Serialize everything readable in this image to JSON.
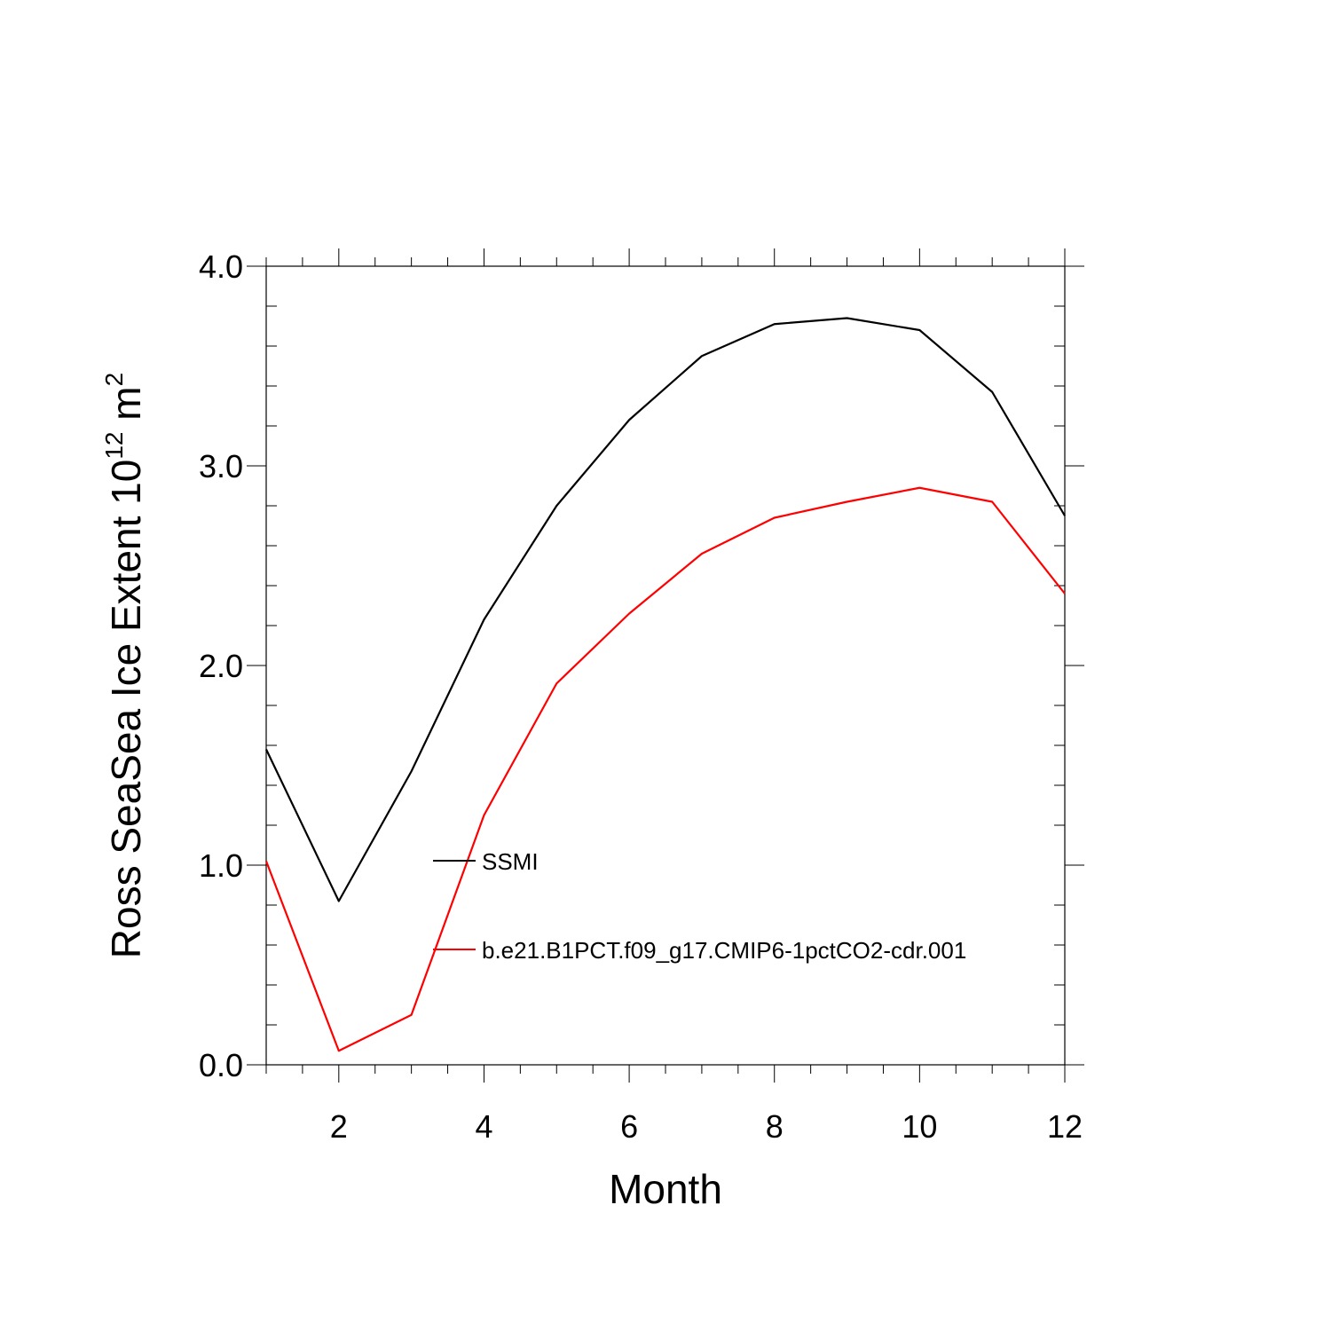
{
  "chart_data": {
    "type": "line",
    "x": [
      1,
      2,
      3,
      4,
      5,
      6,
      7,
      8,
      9,
      10,
      11,
      12
    ],
    "series": [
      {
        "name": "SSMI",
        "color": "#000000",
        "values": [
          1.58,
          0.82,
          1.47,
          2.23,
          2.8,
          3.23,
          3.55,
          3.71,
          3.74,
          3.68,
          3.37,
          2.75
        ]
      },
      {
        "name": "b.e21.B1PCT.f09_g17.CMIP6-1pctCO2-cdr.001",
        "color": "#ff0000",
        "values": [
          1.02,
          0.07,
          0.25,
          1.25,
          1.91,
          2.26,
          2.56,
          2.74,
          2.82,
          2.89,
          2.82,
          2.36
        ]
      }
    ],
    "xlabel": "Month",
    "ylabel_main": "Ross SeaSea Ice Extent 10",
    "ylabel_sup": "12",
    "ylabel_unit": " m",
    "ylabel_unit_sup": "2",
    "xlim": [
      1,
      12
    ],
    "ylim": [
      0,
      4
    ],
    "x_ticks": [
      2,
      4,
      6,
      8,
      10,
      12
    ],
    "x_tick_labels": [
      "2",
      "4",
      "6",
      "8",
      "10",
      "12"
    ],
    "y_ticks": [
      0,
      1,
      2,
      3,
      4
    ],
    "y_tick_labels": [
      "0.0",
      "1.0",
      "2.0",
      "3.0",
      "4.0"
    ],
    "legend_position": "inside-center"
  }
}
